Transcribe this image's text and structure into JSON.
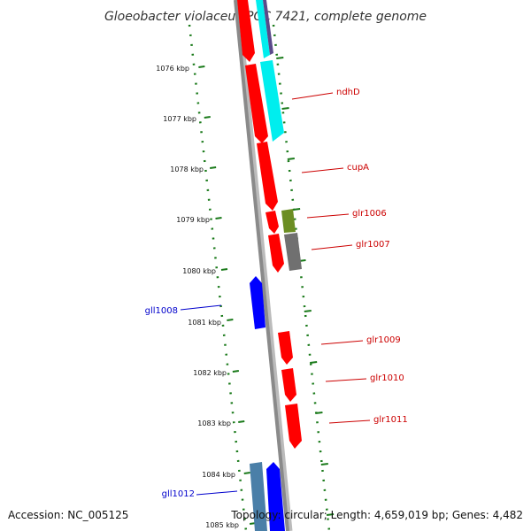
{
  "title": "Gloeobacter violaceus PCC 7421, complete genome",
  "footer": {
    "accession": "Accession: NC_005125",
    "topology": "Topology: circular; Length: 4,659,019 bp; Genes: 4,482"
  },
  "ticks": [
    "1076 kbp",
    "1077 kbp",
    "1078 kbp",
    "1079 kbp",
    "1080 kbp",
    "1081 kbp",
    "1082 kbp",
    "1083 kbp",
    "1084 kbp",
    "1085 kbp"
  ],
  "colors": {
    "backbone": "#8a8a8a",
    "tick_ring": "#1a7a1a",
    "forward_label": "#cc0000",
    "reverse_label": "#0000cc",
    "red": "#ff0000",
    "cyan": "#00eeee",
    "blue": "#0000ff",
    "olive": "#6b8e23",
    "gray": "#707070",
    "steel": "#4a7fa8",
    "purple": "#5a4a8a"
  },
  "gene_labels": [
    {
      "name": "ndhD",
      "strand": "forward"
    },
    {
      "name": "cupA",
      "strand": "forward"
    },
    {
      "name": "glr1006",
      "strand": "forward"
    },
    {
      "name": "glr1007",
      "strand": "forward"
    },
    {
      "name": "gll1008",
      "strand": "reverse"
    },
    {
      "name": "glr1009",
      "strand": "forward"
    },
    {
      "name": "glr1010",
      "strand": "forward"
    },
    {
      "name": "glr1011",
      "strand": "forward"
    },
    {
      "name": "gll1012",
      "strand": "reverse"
    }
  ]
}
